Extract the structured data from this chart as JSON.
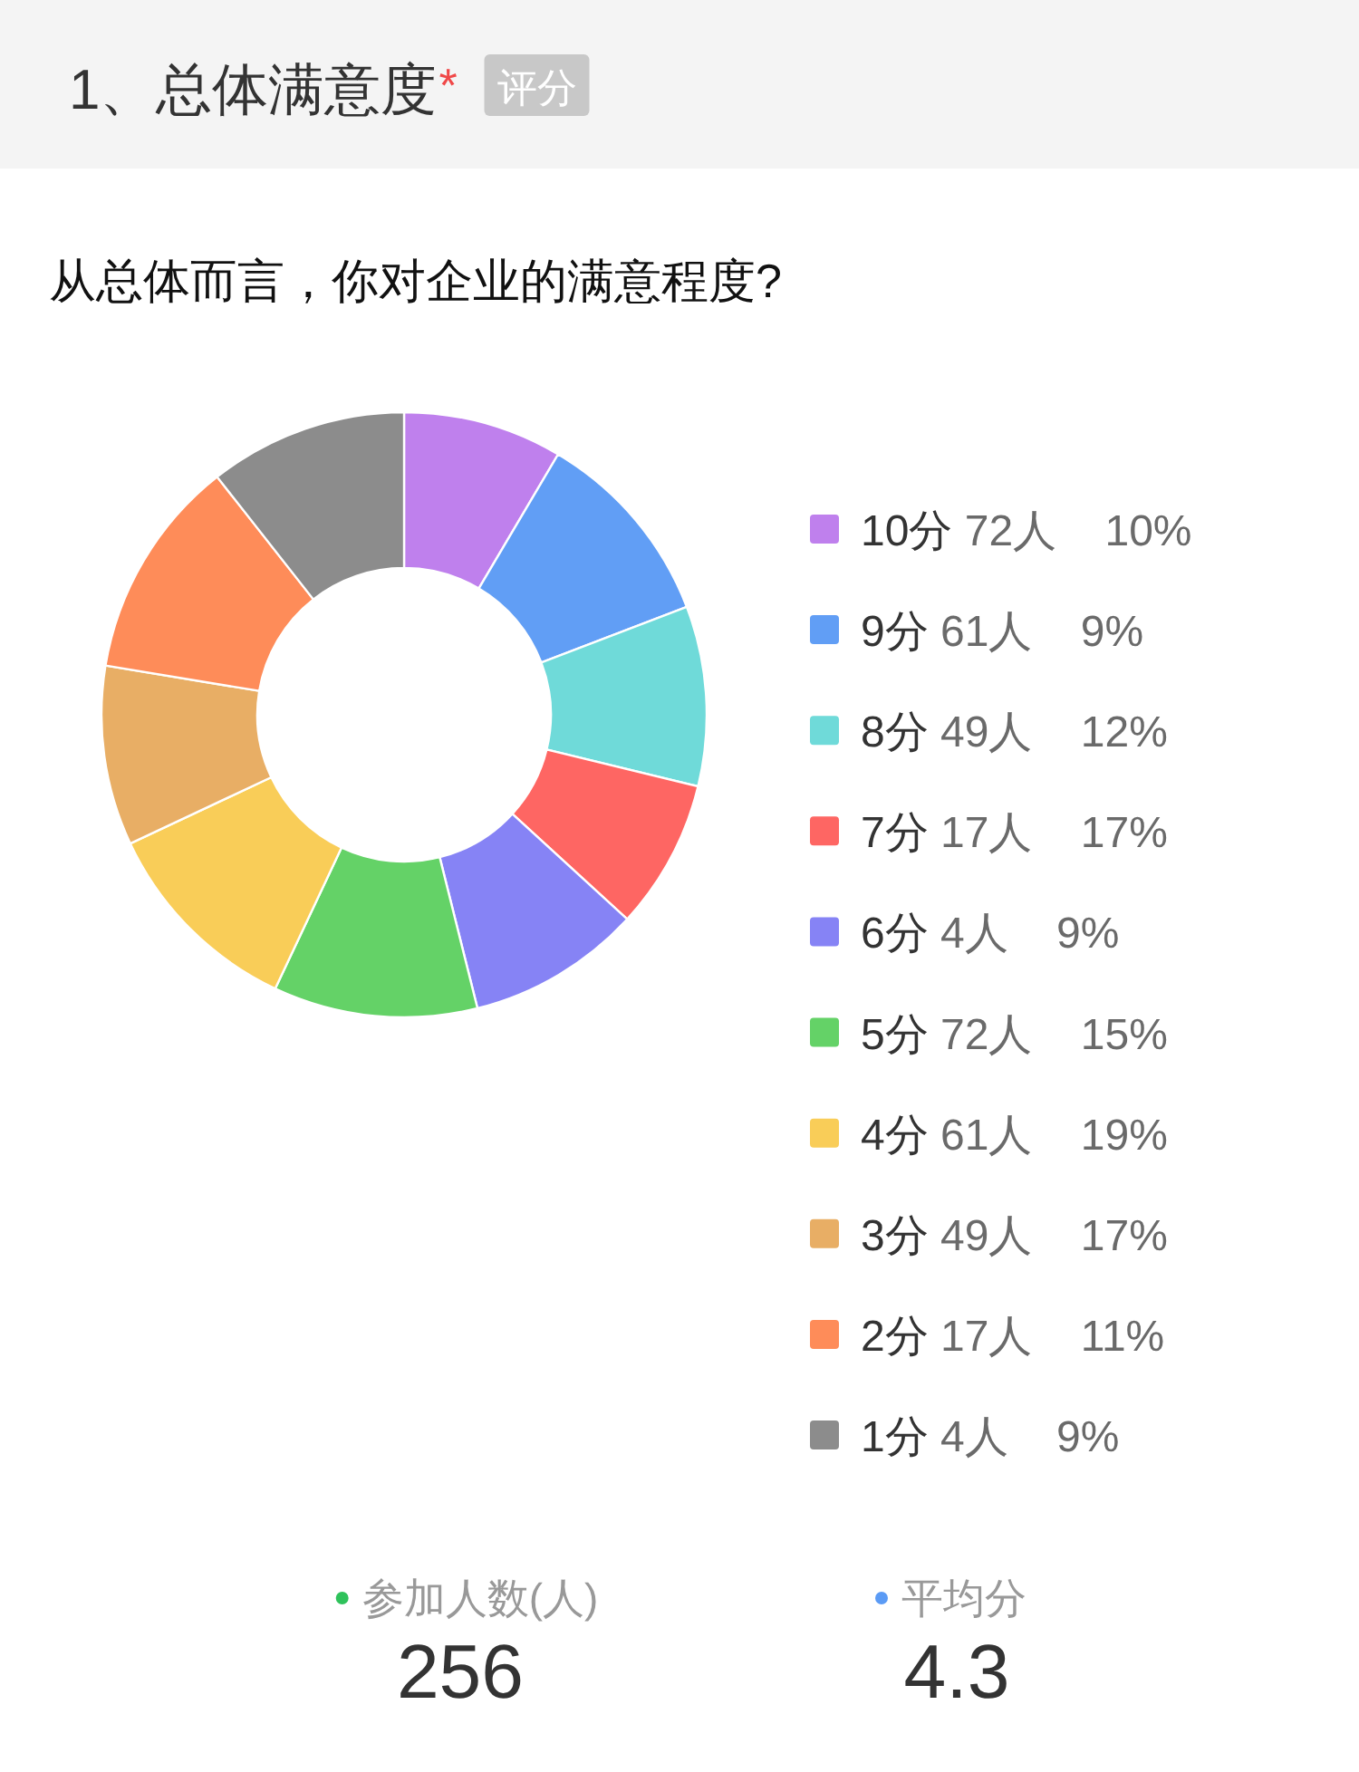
{
  "chart_data": {
    "type": "donut",
    "title": "1、总体满意度",
    "subtitle": "从总体而言，你对企业的满意程度?",
    "categories": [
      "10分 72人    10%",
      "9分 61人    9%",
      "8分 49人    12%",
      "7分 17人    17%",
      "6分 4人    9%",
      "5分 72人    15%",
      "4分 61人    19%",
      "3分 49人    17%",
      "2分 17人    11%",
      "1分 4人    9%"
    ],
    "values": [
      8.5,
      10.7,
      9.6,
      8.0,
      9.3,
      10.9,
      11.0,
      9.6,
      11.8,
      10.6
    ],
    "colors": [
      "#bf80ed",
      "#619ef5",
      "#6fdad9",
      "#fe6663",
      "#8683f5",
      "#64d267",
      "#f9cd58",
      "#e8ae65",
      "#fe8c59",
      "#8c8c8c"
    ],
    "legend": "right",
    "annotations": [
      "*",
      "评分",
      "参加人数(人)",
      "256",
      "平均分",
      "4.3"
    ]
  }
}
